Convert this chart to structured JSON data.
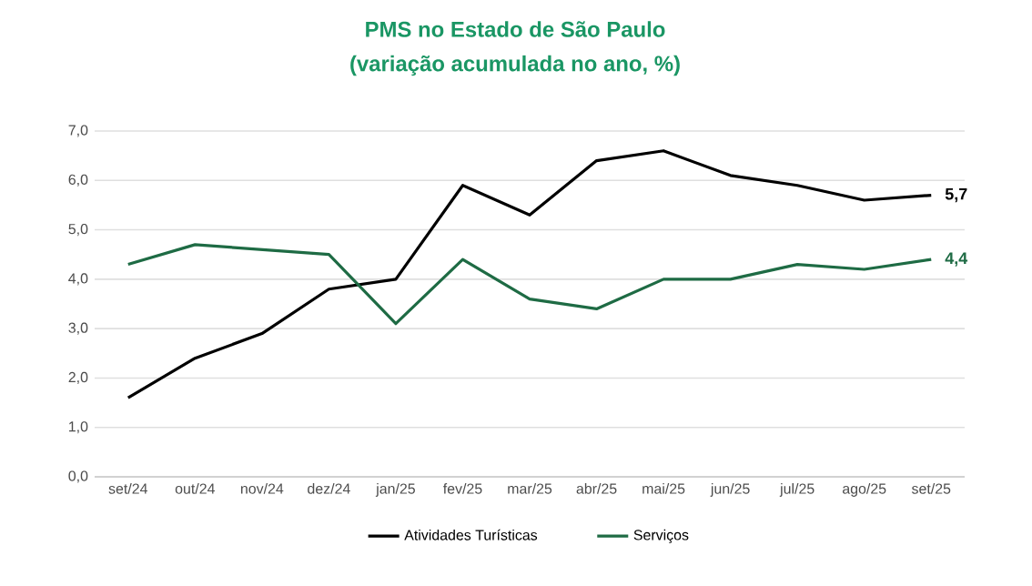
{
  "chart_data": {
    "type": "line",
    "title": "PMS no Estado de São Paulo",
    "subtitle": "(variação acumulada no ano, %)",
    "categories": [
      "set/24",
      "out/24",
      "nov/24",
      "dez/24",
      "jan/25",
      "fev/25",
      "mar/25",
      "abr/25",
      "mai/25",
      "jun/25",
      "jul/25",
      "ago/25",
      "set/25"
    ],
    "series": [
      {
        "name": "Atividades Turísticas",
        "color": "#000000",
        "values": [
          1.6,
          2.4,
          2.9,
          3.8,
          4.0,
          5.9,
          5.3,
          6.4,
          6.6,
          6.1,
          5.9,
          5.6,
          5.7
        ],
        "value_labels": [
          null,
          null,
          null,
          null,
          null,
          null,
          null,
          null,
          null,
          null,
          null,
          null,
          "5,7"
        ]
      },
      {
        "name": "Serviços",
        "color": "#1e6b44",
        "values": [
          4.3,
          4.7,
          4.6,
          4.5,
          3.1,
          4.4,
          3.6,
          3.4,
          4.0,
          4.0,
          4.3,
          4.2,
          4.4
        ],
        "value_labels": [
          null,
          null,
          null,
          null,
          null,
          null,
          null,
          null,
          null,
          null,
          null,
          null,
          "4,4"
        ]
      }
    ],
    "ylim": [
      0,
      7
    ],
    "yticks": [
      {
        "value": 0,
        "label": "0,0"
      },
      {
        "value": 1,
        "label": "1,0"
      },
      {
        "value": 2,
        "label": "2,0"
      },
      {
        "value": 3,
        "label": "3,0"
      },
      {
        "value": 4,
        "label": "4,0"
      },
      {
        "value": 5,
        "label": "5,0"
      },
      {
        "value": 6,
        "label": "6,0"
      },
      {
        "value": 7,
        "label": "7,0"
      }
    ],
    "grid": "y",
    "legend": "bottom",
    "line_style": "solid"
  }
}
